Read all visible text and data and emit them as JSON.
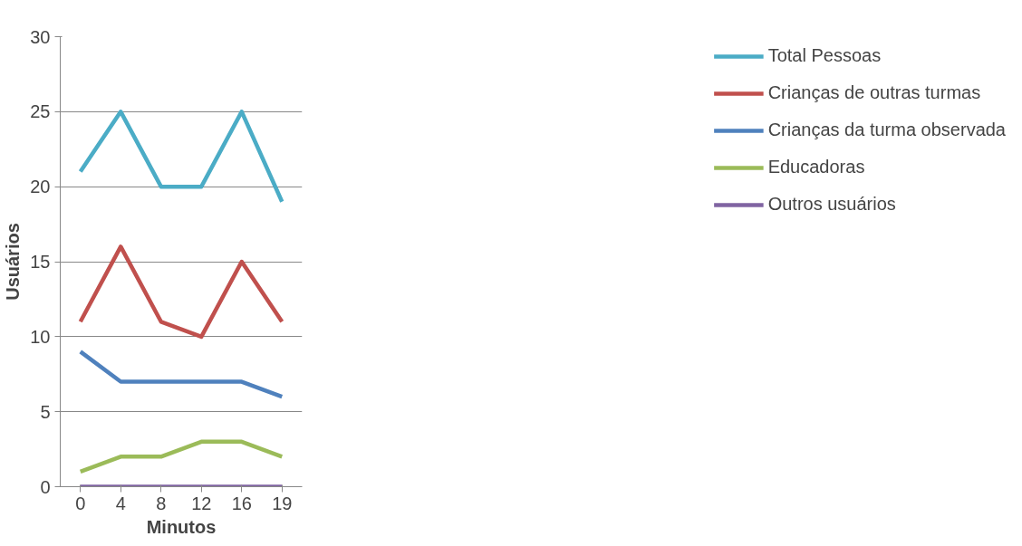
{
  "chart_data": {
    "type": "line",
    "xlabel": "Minutos",
    "ylabel": "Usuários",
    "categories": [
      "0",
      "4",
      "8",
      "12",
      "16",
      "19"
    ],
    "series": [
      {
        "name": "Total Pessoas",
        "color": "#4bacc6",
        "values": [
          21,
          25,
          20,
          20,
          25,
          19
        ]
      },
      {
        "name": "Crianças de outras turmas",
        "color": "#c0504d",
        "values": [
          11,
          16,
          11,
          10,
          15,
          11
        ]
      },
      {
        "name": "Crianças da turma observada",
        "color": "#4f81bd",
        "values": [
          9,
          7,
          7,
          7,
          7,
          6
        ]
      },
      {
        "name": "Educadoras",
        "color": "#9bbb59",
        "values": [
          1,
          2,
          2,
          3,
          3,
          2
        ]
      },
      {
        "name": "Outros usuários",
        "color": "#8064a2",
        "values": [
          0,
          0,
          0,
          0,
          0,
          0
        ]
      }
    ],
    "ylim": [
      0,
      30
    ],
    "yticks": [
      0,
      5,
      10,
      15,
      20,
      25,
      30
    ],
    "grid": "y",
    "legend": "right",
    "marker": "none"
  }
}
